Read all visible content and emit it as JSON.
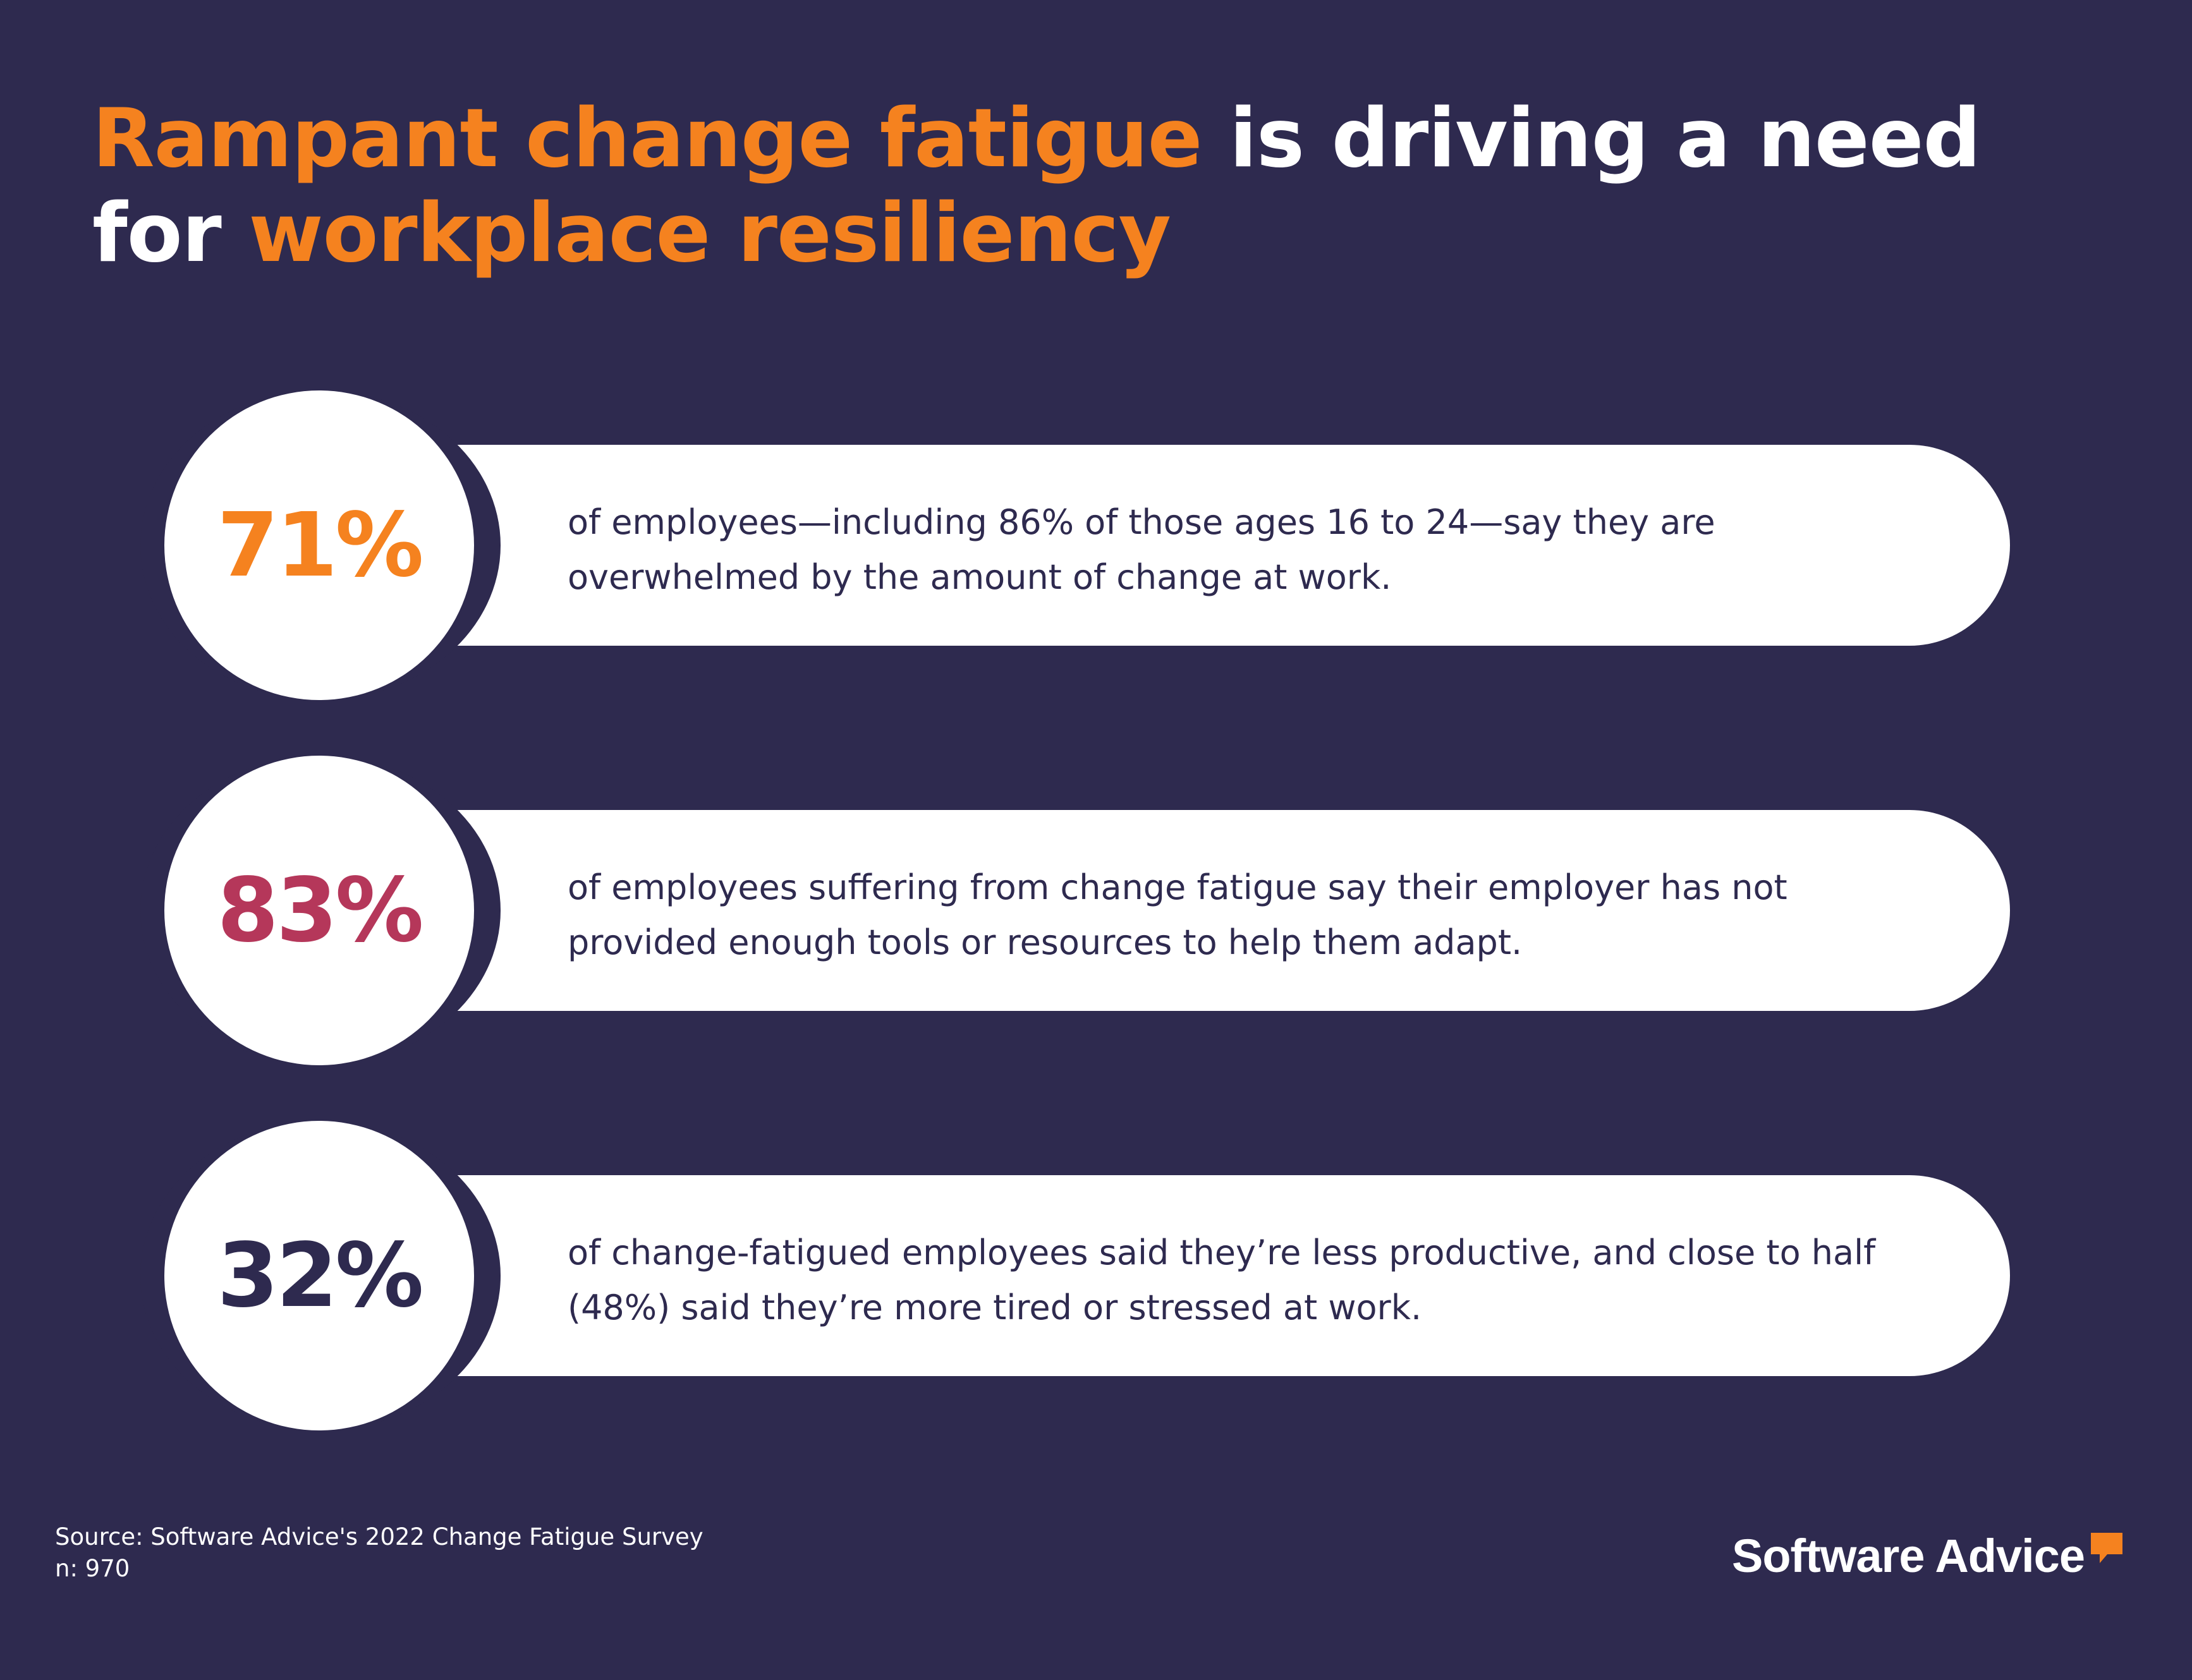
{
  "title": {
    "part1": "Rampant change fatigue",
    "part2": " is driving a need",
    "part3": "for ",
    "part4": "workplace resiliency"
  },
  "stats": [
    {
      "value": "71%",
      "color": "#f5821f",
      "line1": "of employees—including 86% of those ages 16 to 24—say they are",
      "line2": "overwhelmed by the amount of change at work."
    },
    {
      "value": "83%",
      "color": "#b5375a",
      "line1": "of employees suffering from change fatigue say their employer has not",
      "line2": "provided enough tools or resources to help them adapt."
    },
    {
      "value": "32%",
      "color": "#2e2a4f",
      "line1": "of change-fatigued employees said they’re less productive, and close to half",
      "line2": "(48%) said they’re more tired or stressed at work."
    }
  ],
  "footer": {
    "source": "Source: Software Advice's 2022 Change Fatigue Survey",
    "sample": "n: 970",
    "logo_text": "Software Advice",
    "logo_icon": "speech-bubble-icon"
  },
  "colors": {
    "background": "#2e2a4f",
    "accent": "#f5821f",
    "white": "#ffffff"
  }
}
